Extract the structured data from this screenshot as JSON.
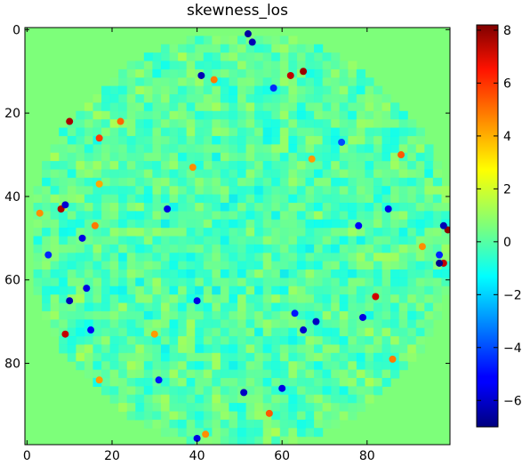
{
  "chart_data": {
    "type": "heatmap",
    "title": "skewness_los",
    "xlabel": "",
    "ylabel": "",
    "grid": false,
    "colormap": "jet",
    "x_range": [
      0,
      99
    ],
    "y_range": [
      0,
      99
    ],
    "y_inverted": true,
    "x_ticks": [
      "0",
      "20",
      "40",
      "60",
      "80"
    ],
    "y_ticks": [
      "0",
      "20",
      "40",
      "60",
      "80"
    ],
    "colorbar": {
      "range": [
        -7.0,
        8.2
      ],
      "ticks": [
        "8",
        "6",
        "4",
        "2",
        "0",
        "−2",
        "−4",
        "−6"
      ],
      "tick_values": [
        8,
        6,
        4,
        2,
        0,
        -2,
        -4,
        -6
      ]
    },
    "field": {
      "background_value": 0.0,
      "disk_center": [
        50,
        50
      ],
      "disk_radius": 49.5,
      "texture_amplitude": 1.4
    },
    "hot_spots": [
      {
        "x": 65,
        "y": 10,
        "value": 7.8
      },
      {
        "x": 62,
        "y": 11,
        "value": 7.2
      },
      {
        "x": 44,
        "y": 12,
        "value": 4.5
      },
      {
        "x": 10,
        "y": 22,
        "value": 7.6
      },
      {
        "x": 22,
        "y": 22,
        "value": 4.8
      },
      {
        "x": 17,
        "y": 26,
        "value": 5.5
      },
      {
        "x": 39,
        "y": 33,
        "value": 4.2
      },
      {
        "x": 67,
        "y": 31,
        "value": 4.0
      },
      {
        "x": 88,
        "y": 30,
        "value": 5.0
      },
      {
        "x": 17,
        "y": 37,
        "value": 3.8
      },
      {
        "x": 8,
        "y": 43,
        "value": 7.5
      },
      {
        "x": 3,
        "y": 44,
        "value": 4.2
      },
      {
        "x": 16,
        "y": 47,
        "value": 4.5
      },
      {
        "x": 99,
        "y": 48,
        "value": 8.0
      },
      {
        "x": 93,
        "y": 52,
        "value": 4.2
      },
      {
        "x": 98,
        "y": 56,
        "value": 7.2
      },
      {
        "x": 82,
        "y": 64,
        "value": 7.0
      },
      {
        "x": 9,
        "y": 73,
        "value": 7.2
      },
      {
        "x": 30,
        "y": 73,
        "value": 4.0
      },
      {
        "x": 86,
        "y": 79,
        "value": 4.5
      },
      {
        "x": 17,
        "y": 84,
        "value": 4.0
      },
      {
        "x": 57,
        "y": 92,
        "value": 5.0
      },
      {
        "x": 42,
        "y": 97,
        "value": 4.2
      }
    ],
    "cold_spots": [
      {
        "x": 52,
        "y": 1,
        "value": -6.5
      },
      {
        "x": 53,
        "y": 3,
        "value": -6.2
      },
      {
        "x": 41,
        "y": 11,
        "value": -6.2
      },
      {
        "x": 58,
        "y": 14,
        "value": -4.5
      },
      {
        "x": 9,
        "y": 42,
        "value": -5.8
      },
      {
        "x": 33,
        "y": 43,
        "value": -5.5
      },
      {
        "x": 85,
        "y": 43,
        "value": -5.5
      },
      {
        "x": 78,
        "y": 47,
        "value": -5.2
      },
      {
        "x": 13,
        "y": 50,
        "value": -5.5
      },
      {
        "x": 98,
        "y": 47,
        "value": -6.2
      },
      {
        "x": 5,
        "y": 54,
        "value": -4.6
      },
      {
        "x": 97,
        "y": 54,
        "value": -4.6
      },
      {
        "x": 97,
        "y": 56,
        "value": -6.8
      },
      {
        "x": 14,
        "y": 62,
        "value": -5.5
      },
      {
        "x": 10,
        "y": 65,
        "value": -6.2
      },
      {
        "x": 40,
        "y": 65,
        "value": -5.5
      },
      {
        "x": 63,
        "y": 68,
        "value": -4.8
      },
      {
        "x": 68,
        "y": 70,
        "value": -6.0
      },
      {
        "x": 79,
        "y": 69,
        "value": -5.5
      },
      {
        "x": 15,
        "y": 72,
        "value": -5.2
      },
      {
        "x": 65,
        "y": 72,
        "value": -5.8
      },
      {
        "x": 31,
        "y": 84,
        "value": -4.8
      },
      {
        "x": 60,
        "y": 86,
        "value": -5.5
      },
      {
        "x": 51,
        "y": 87,
        "value": -6.0
      },
      {
        "x": 40,
        "y": 98,
        "value": -5.5
      },
      {
        "x": 74,
        "y": 27,
        "value": -4.0
      }
    ]
  }
}
